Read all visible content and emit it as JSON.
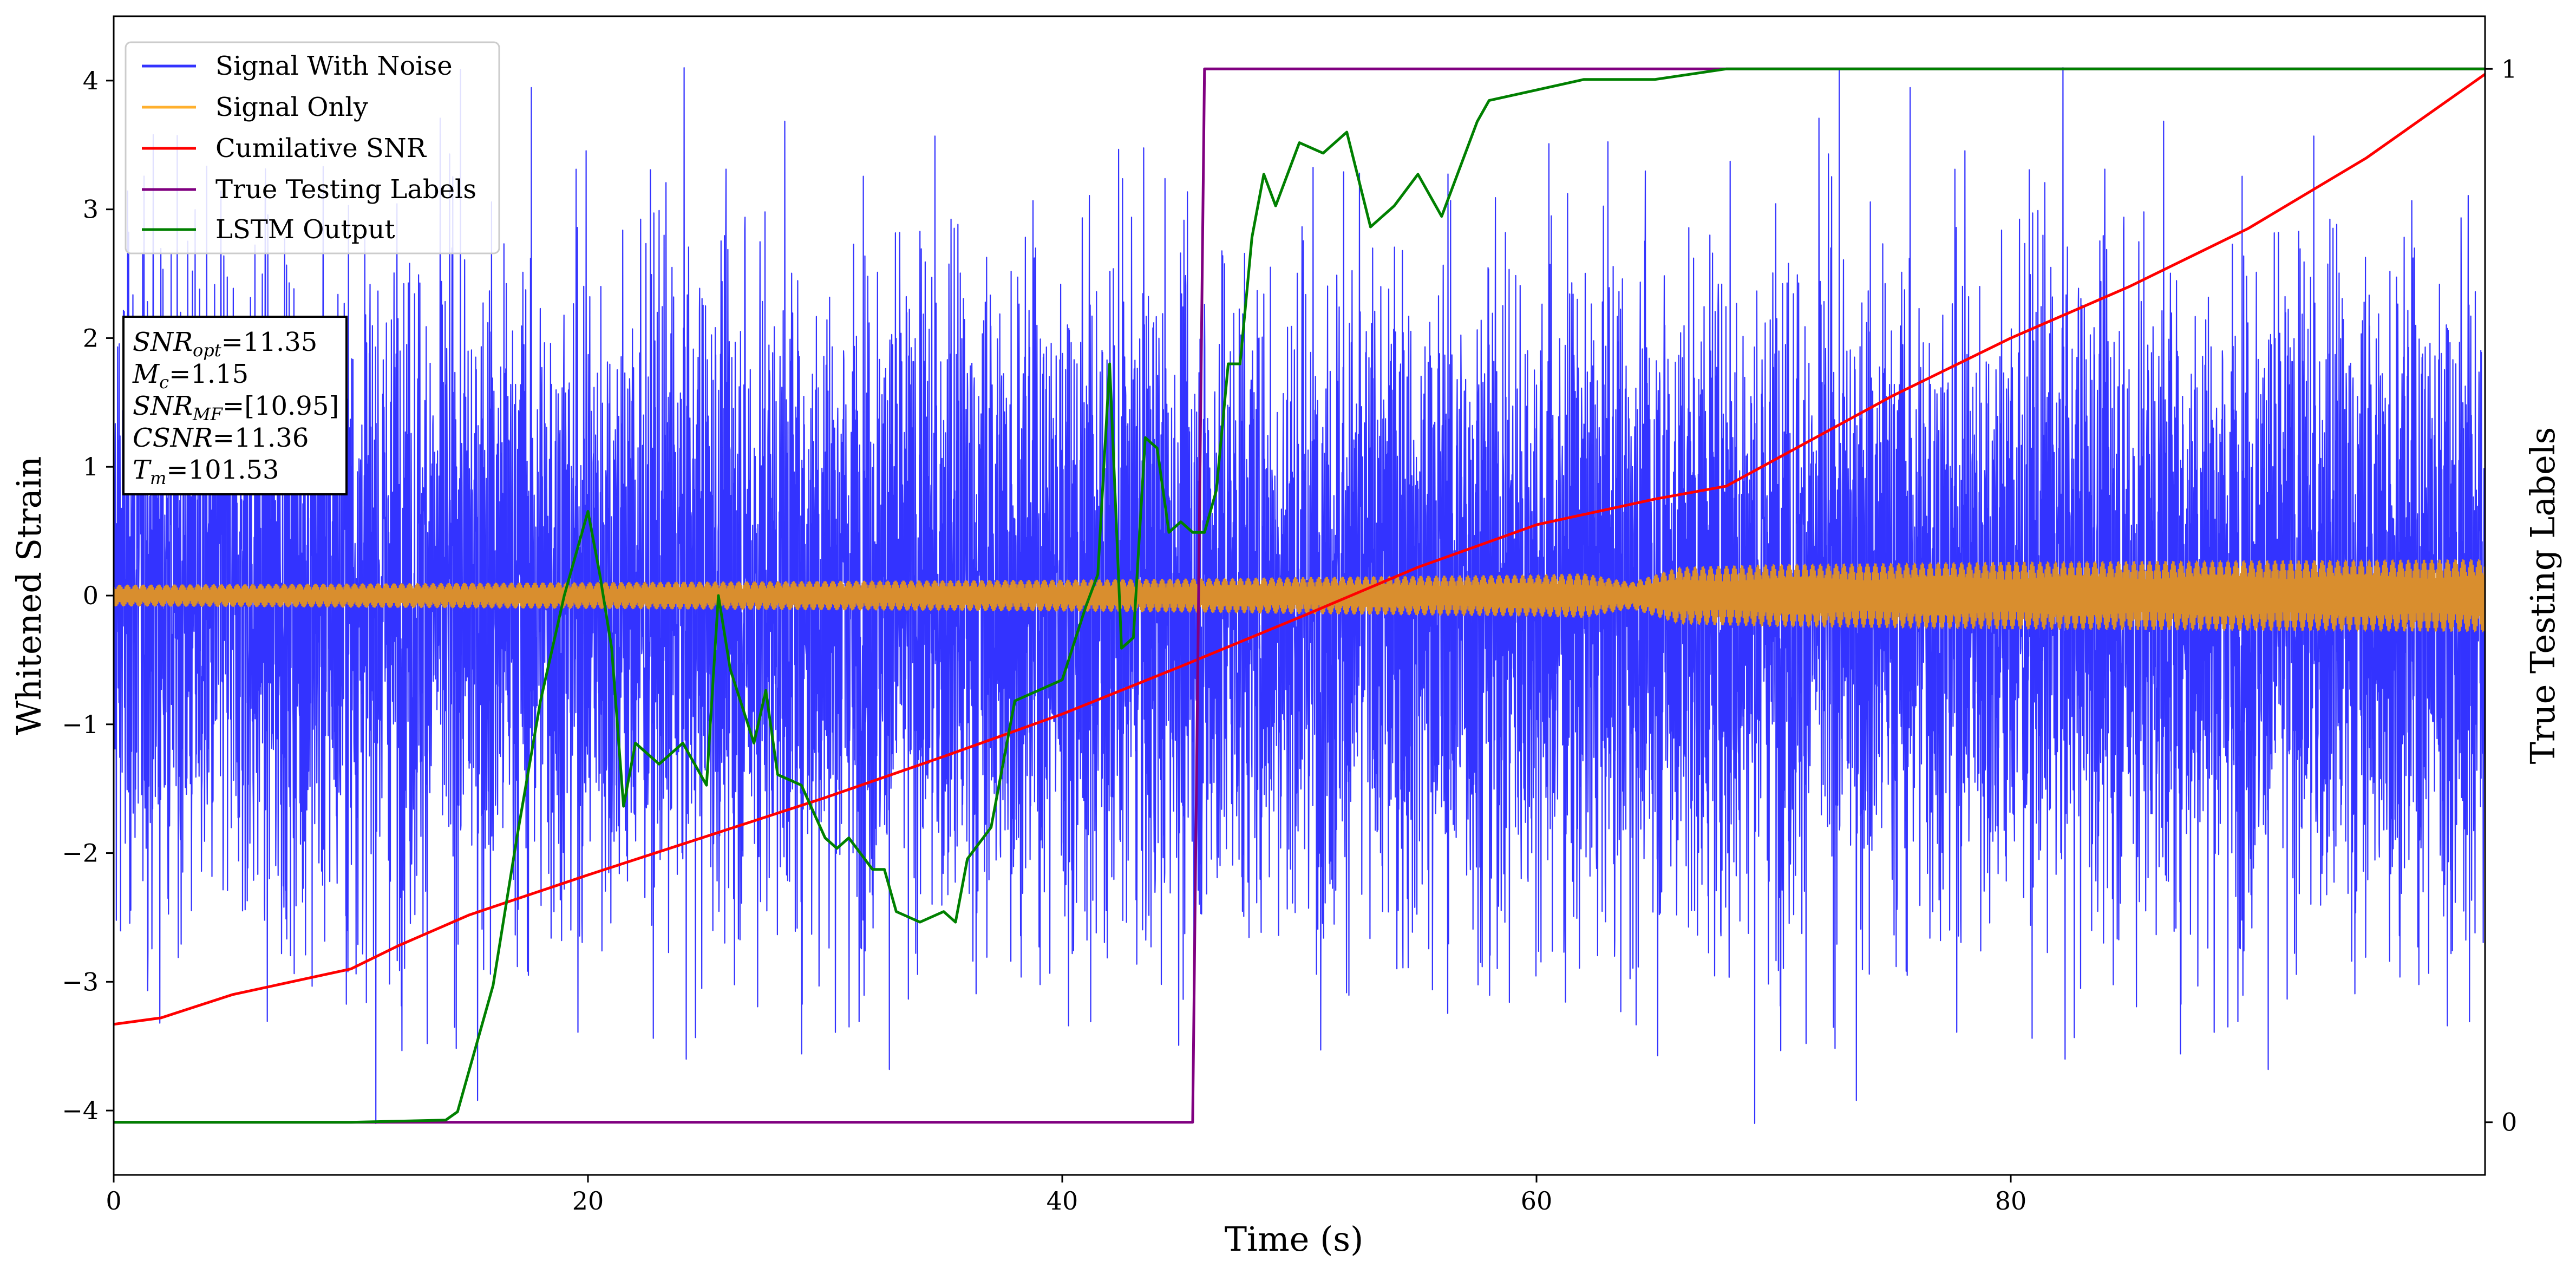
{
  "chart_data": {
    "type": "line",
    "xlabel": "Time (s)",
    "ylabel": "Whitened Strain",
    "y2label": "True Testing Labels",
    "xlim": [
      0,
      100
    ],
    "ylim": [
      -4.5,
      4.5
    ],
    "y2lim": [
      -0.05,
      1.05
    ],
    "x_ticks": [
      0,
      20,
      40,
      60,
      80
    ],
    "y_ticks": [
      -4,
      -3,
      -2,
      -1,
      0,
      1,
      2,
      3,
      4
    ],
    "y2_ticks": [
      0,
      1
    ],
    "grid": false,
    "legend_position": "top-left",
    "legend": [
      {
        "label": "Signal With Noise",
        "color": "#3333ff"
      },
      {
        "label": "Signal Only",
        "color": "#ffb02e"
      },
      {
        "label": "Cumilative SNR",
        "color": "#ff0000"
      },
      {
        "label": "True Testing Labels",
        "color": "#800080"
      },
      {
        "label": "LSTM Output",
        "color": "#008000"
      }
    ],
    "annotation": {
      "lines": [
        {
          "base": "SNR",
          "sub": "opt",
          "text": "=11.35"
        },
        {
          "base": "M",
          "sub": "c",
          "text": "=1.15"
        },
        {
          "base": "SNR",
          "sub": "MF",
          "text": "=[10.95]"
        },
        {
          "base": "CSNR",
          "sub": "",
          "text": "=11.36"
        },
        {
          "base": "T",
          "sub": "m",
          "text": "=101.53"
        }
      ]
    },
    "series": [
      {
        "name": "Signal With Noise",
        "axis": "left",
        "color": "#3333ff",
        "style": "noise",
        "peak_max": 4.1,
        "peak_min": -4.1,
        "typical_amplitude": 1.3
      },
      {
        "name": "Signal Only",
        "axis": "left",
        "color": "#d98e2e",
        "style": "envelope",
        "x": [
          0,
          10,
          20,
          30,
          40,
          46,
          50,
          60,
          62,
          64,
          66,
          70,
          80,
          90,
          100
        ],
        "amplitude": [
          0.08,
          0.09,
          0.1,
          0.11,
          0.12,
          0.13,
          0.14,
          0.16,
          0.17,
          0.1,
          0.22,
          0.24,
          0.26,
          0.27,
          0.28
        ]
      },
      {
        "name": "Cumilative SNR",
        "axis": "left",
        "color": "#ff0000",
        "x": [
          0,
          2,
          5,
          8,
          10,
          12,
          15,
          20,
          25,
          30,
          35,
          40,
          45,
          50,
          55,
          60,
          65,
          68,
          70,
          75,
          80,
          85,
          90,
          95,
          100
        ],
        "y": [
          -3.33,
          -3.28,
          -3.1,
          -2.98,
          -2.9,
          -2.72,
          -2.48,
          -2.17,
          -1.87,
          -1.57,
          -1.25,
          -0.92,
          -0.55,
          -0.17,
          0.22,
          0.55,
          0.75,
          0.85,
          1.05,
          1.55,
          2.0,
          2.4,
          2.85,
          3.4,
          4.05
        ]
      },
      {
        "name": "True Testing Labels",
        "axis": "right",
        "color": "#800080",
        "x": [
          0,
          45.5,
          46.0,
          100
        ],
        "y": [
          0,
          0,
          1,
          1
        ]
      },
      {
        "name": "LSTM Output",
        "axis": "right",
        "color": "#008000",
        "x": [
          0,
          10,
          14,
          14.5,
          15,
          16,
          17,
          18,
          19,
          20,
          20.5,
          21,
          21.5,
          22,
          23,
          24,
          25,
          25.5,
          26,
          27,
          27.5,
          28,
          29,
          30,
          30.5,
          31,
          32,
          32.5,
          33,
          34,
          35,
          35.5,
          36,
          37,
          38,
          39,
          40,
          41,
          41.5,
          42,
          42.5,
          43,
          43.5,
          44,
          44.5,
          45,
          45.5,
          46,
          46.5,
          47,
          47.5,
          48,
          48.5,
          49,
          50,
          51,
          52,
          53,
          54,
          55,
          56,
          56.5,
          57,
          57.5,
          58,
          60,
          62,
          65,
          68,
          72,
          75,
          100
        ],
        "y": [
          0,
          0,
          0.002,
          0.01,
          0.05,
          0.13,
          0.27,
          0.4,
          0.5,
          0.58,
          0.52,
          0.45,
          0.3,
          0.36,
          0.34,
          0.36,
          0.32,
          0.5,
          0.43,
          0.36,
          0.41,
          0.33,
          0.32,
          0.27,
          0.26,
          0.27,
          0.24,
          0.24,
          0.2,
          0.19,
          0.2,
          0.19,
          0.25,
          0.28,
          0.4,
          0.41,
          0.42,
          0.49,
          0.52,
          0.72,
          0.45,
          0.46,
          0.65,
          0.64,
          0.56,
          0.57,
          0.56,
          0.56,
          0.6,
          0.72,
          0.72,
          0.84,
          0.9,
          0.87,
          0.93,
          0.92,
          0.94,
          0.85,
          0.87,
          0.9,
          0.86,
          0.89,
          0.92,
          0.95,
          0.97,
          0.98,
          0.99,
          0.99,
          1.0,
          1.0,
          1.0,
          1.0
        ]
      }
    ]
  }
}
